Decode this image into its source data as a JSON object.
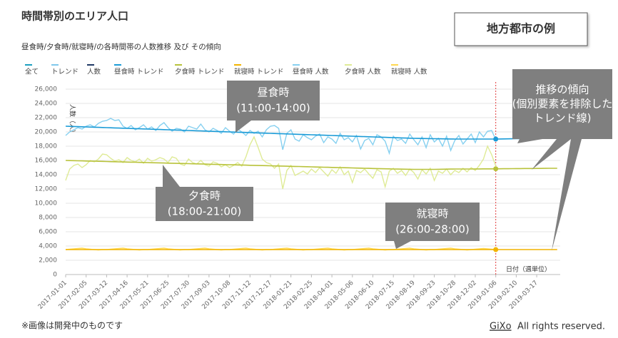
{
  "chart_data": {
    "type": "line",
    "title": "時間帯別のエリア人口",
    "subtitle": "昼食時/夕食時/就寝時/の各時間帯の人数推移 及び その傾向",
    "badge": "地方都市の例",
    "y_label": "人数（人）",
    "x_label": "日付（週単位）",
    "footnote": "※画像は開発中のものです",
    "copyright_brand": "GiXo",
    "copyright_text": "All rights reserved.",
    "filters": [
      {
        "name": "全て",
        "color": "#1a9fc0"
      },
      {
        "name": "トレンド",
        "color": "#7fc8ec"
      },
      {
        "name": "人数",
        "color": "#1f3864"
      }
    ],
    "annotations": [
      {
        "lines": [
          "昼食時",
          "(11:00-14:00)"
        ]
      },
      {
        "lines": [
          "夕食時",
          "(18:00-21:00)"
        ]
      },
      {
        "lines": [
          "就寝時",
          "(26:00-28:00)"
        ]
      },
      {
        "lines": [
          "推移の傾向",
          "(個別要素を排除した",
          "トレンド線)"
        ]
      }
    ],
    "vline": {
      "x": "2019-01-06",
      "color": "#e03a3a"
    },
    "ylim": [
      0,
      26000
    ],
    "yticks": [
      0,
      {
        "value": 2000,
        "label": "2,000"
      },
      {
        "value": 4000,
        "label": "4,000"
      },
      {
        "value": 6000,
        "label": "6,000"
      },
      {
        "value": 8000,
        "label": "8,000"
      },
      {
        "value": 10000,
        "label": "10,000"
      },
      {
        "value": 12000,
        "label": "12,000"
      },
      {
        "value": 14000,
        "label": "14,000"
      },
      {
        "value": 16000,
        "label": "16,000"
      },
      {
        "value": 18000,
        "label": "18,000"
      },
      {
        "value": 20000,
        "label": "20,000"
      },
      {
        "value": 22000,
        "label": "22,000"
      },
      {
        "value": 24000,
        "label": "24,000"
      },
      {
        "value": 26000,
        "label": "26,000"
      }
    ],
    "grid": true,
    "categories": [
      "2017-01-01",
      null,
      null,
      null,
      null,
      "2017-02-05",
      null,
      null,
      null,
      null,
      "2017-03-12",
      null,
      null,
      null,
      null,
      "2017-04-16",
      null,
      null,
      null,
      null,
      "2017-05-21",
      null,
      null,
      null,
      null,
      "2017-06-25",
      null,
      null,
      null,
      null,
      "2017-07-30",
      null,
      null,
      null,
      null,
      "2017-09-03",
      null,
      null,
      null,
      null,
      "2017-10-08",
      null,
      null,
      null,
      null,
      "2017-11-12",
      null,
      null,
      null,
      null,
      "2017-12-17",
      null,
      null,
      null,
      null,
      "2018-01-21",
      null,
      null,
      null,
      null,
      "2018-02-25",
      null,
      null,
      null,
      null,
      "2018-04-01",
      null,
      null,
      null,
      null,
      "2018-05-06",
      null,
      null,
      null,
      null,
      "2018-06-10",
      null,
      null,
      null,
      null,
      "2018-07-15",
      null,
      null,
      null,
      null,
      "2018-08-19",
      null,
      null,
      null,
      null,
      "2018-09-23",
      null,
      null,
      null,
      null,
      "2018-10-28",
      null,
      null,
      null,
      null,
      "2018-12-02",
      null,
      null,
      null,
      null,
      "2019-01-06",
      null,
      null,
      null,
      null,
      "2019-02-10",
      null,
      null,
      null,
      null,
      "2019-03-17",
      null,
      null,
      null,
      null,
      null
    ],
    "series": [
      {
        "name": "昼食時 トレンド",
        "color": "#1a9bd7",
        "width": 1.6,
        "values": [
          20800,
          20780,
          20760,
          20740,
          20720,
          20700,
          20680,
          20660,
          20640,
          20620,
          20600,
          20580,
          20560,
          20540,
          20520,
          20500,
          20480,
          20460,
          20440,
          20420,
          20400,
          20380,
          20360,
          20340,
          20320,
          20300,
          20280,
          20260,
          20240,
          20220,
          20200,
          20180,
          20160,
          20140,
          20120,
          20100,
          20080,
          20060,
          20040,
          20020,
          20000,
          19980,
          19960,
          19940,
          19920,
          19900,
          19880,
          19860,
          19840,
          19820,
          19800,
          19780,
          19760,
          19740,
          19720,
          19700,
          19680,
          19660,
          19640,
          19620,
          19600,
          19580,
          19560,
          19540,
          19520,
          19500,
          19480,
          19460,
          19440,
          19420,
          19400,
          19380,
          19360,
          19340,
          19320,
          19300,
          19280,
          19260,
          19240,
          19220,
          19200,
          19180,
          19160,
          19140,
          19120,
          19100,
          19090,
          19080,
          19070,
          19060,
          19050,
          19040,
          19030,
          19020,
          19010,
          19000,
          19000,
          19000,
          19000,
          19000,
          19000,
          19000,
          19000,
          19000,
          19000,
          19000,
          19010,
          19020,
          19030,
          19040,
          19050,
          19060,
          19070,
          19080,
          19090,
          19100,
          19110,
          19120,
          19130,
          19140,
          19150
        ]
      },
      {
        "name": "夕食時 トレンド",
        "color": "#b8c23a",
        "width": 1.6,
        "values": [
          16000,
          15985,
          15970,
          15955,
          15940,
          15925,
          15910,
          15895,
          15880,
          15865,
          15850,
          15835,
          15820,
          15805,
          15790,
          15775,
          15760,
          15745,
          15730,
          15715,
          15700,
          15685,
          15670,
          15655,
          15640,
          15625,
          15610,
          15595,
          15580,
          15565,
          15550,
          15535,
          15520,
          15505,
          15490,
          15475,
          15460,
          15445,
          15430,
          15415,
          15400,
          15385,
          15370,
          15355,
          15340,
          15325,
          15310,
          15295,
          15280,
          15265,
          15250,
          15235,
          15220,
          15205,
          15190,
          15175,
          15160,
          15145,
          15130,
          15115,
          15100,
          15085,
          15070,
          15055,
          15040,
          15025,
          15010,
          14995,
          14980,
          14965,
          14950,
          14935,
          14920,
          14905,
          14890,
          14875,
          14860,
          14845,
          14830,
          14815,
          14800,
          14790,
          14780,
          14770,
          14760,
          14750,
          14750,
          14750,
          14750,
          14750,
          14750,
          14760,
          14770,
          14780,
          14790,
          14800,
          14800,
          14800,
          14800,
          14800,
          14805,
          14810,
          14815,
          14820,
          14825,
          14830,
          14835,
          14840,
          14845,
          14850,
          14855,
          14860,
          14865,
          14870,
          14875,
          14880,
          14885,
          14890,
          14895,
          14900,
          14905
        ]
      },
      {
        "name": "就寝時 トレンド",
        "color": "#f2b400",
        "width": 1.6,
        "values": [
          3500,
          3500,
          3500,
          3500,
          3500,
          3500,
          3500,
          3500,
          3500,
          3500,
          3500,
          3500,
          3500,
          3500,
          3500,
          3500,
          3500,
          3500,
          3500,
          3500,
          3500,
          3500,
          3500,
          3500,
          3500,
          3500,
          3500,
          3500,
          3500,
          3500,
          3500,
          3500,
          3500,
          3500,
          3500,
          3500,
          3500,
          3500,
          3500,
          3500,
          3500,
          3500,
          3500,
          3500,
          3500,
          3500,
          3500,
          3500,
          3500,
          3500,
          3500,
          3500,
          3500,
          3500,
          3500,
          3500,
          3500,
          3500,
          3500,
          3500,
          3500,
          3500,
          3500,
          3500,
          3500,
          3500,
          3500,
          3500,
          3500,
          3500,
          3500,
          3500,
          3500,
          3500,
          3500,
          3500,
          3500,
          3500,
          3500,
          3500,
          3500,
          3500,
          3500,
          3500,
          3500,
          3500,
          3500,
          3500,
          3500,
          3500,
          3500,
          3500,
          3500,
          3500,
          3500,
          3500,
          3500,
          3500,
          3500,
          3500,
          3500,
          3500,
          3500,
          3500,
          3500,
          3500,
          3500,
          3500,
          3500,
          3500,
          3500,
          3500,
          3500,
          3500,
          3500,
          3500,
          3500,
          3500,
          3500,
          3500,
          3500
        ]
      },
      {
        "name": "昼食時 人数",
        "color": "#86d0f0",
        "width": 1.4,
        "values": [
          19500,
          20000,
          20300,
          20600,
          20400,
          20800,
          21000,
          20700,
          21200,
          21500,
          21600,
          21900,
          21600,
          21700,
          20800,
          20500,
          20900,
          20300,
          20600,
          21000,
          20400,
          20700,
          20200,
          20900,
          21300,
          20600,
          20100,
          20500,
          20400,
          20000,
          20800,
          20600,
          20400,
          21100,
          20300,
          20000,
          20500,
          20200,
          19800,
          20600,
          20100,
          19700,
          20400,
          20000,
          19500,
          20200,
          19800,
          20100,
          19300,
          20300,
          20800,
          20900,
          20500,
          17500,
          19800,
          20300,
          19000,
          18700,
          19600,
          19200,
          18900,
          19400,
          19700,
          18500,
          19300,
          19000,
          18400,
          19800,
          18900,
          19200,
          18600,
          19500,
          17600,
          18800,
          19100,
          18200,
          19600,
          19300,
          18700,
          17000,
          19400,
          18800,
          19000,
          18400,
          19700,
          18900,
          18200,
          19300,
          17800,
          19600,
          18600,
          19100,
          18000,
          19400,
          17400,
          18800,
          19500,
          18300,
          19000,
          19700,
          18500,
          20000,
          19300,
          20100,
          20200,
          18900,
          null,
          null,
          null,
          null,
          null,
          null,
          null,
          null,
          null,
          null,
          null,
          null,
          null,
          null,
          null
        ]
      },
      {
        "name": "夕食時 人数",
        "color": "#dfeb96",
        "width": 1.4,
        "values": [
          13200,
          14800,
          15300,
          15500,
          15000,
          15400,
          16000,
          15800,
          16200,
          16900,
          16800,
          16300,
          15900,
          16100,
          15700,
          16400,
          16000,
          15800,
          16200,
          15600,
          16300,
          15900,
          16100,
          16400,
          16200,
          15700,
          16500,
          16300,
          15500,
          15300,
          16200,
          15700,
          15500,
          16000,
          15400,
          15200,
          15800,
          15600,
          15100,
          15400,
          15000,
          15300,
          15700,
          15200,
          16500,
          18200,
          19300,
          17800,
          16200,
          15700,
          15500,
          14900,
          15500,
          12000,
          14600,
          15300,
          13900,
          14200,
          14500,
          14100,
          14800,
          14300,
          15000,
          14400,
          13800,
          14700,
          14200,
          15100,
          14000,
          14500,
          12900,
          14600,
          14300,
          14800,
          14100,
          13500,
          14700,
          14400,
          12300,
          14500,
          14900,
          14200,
          14600,
          13900,
          14800,
          14300,
          13400,
          14700,
          14100,
          14900,
          13200,
          14500,
          14200,
          14800,
          14000,
          14600,
          14300,
          14900,
          14400,
          15000,
          14600,
          15300,
          16200,
          18000,
          16800,
          15200,
          null,
          null,
          null,
          null,
          null,
          null,
          null,
          null,
          null,
          null,
          null,
          null,
          null,
          null,
          null
        ]
      },
      {
        "name": "就寝時 人数",
        "color": "#ffd84f",
        "width": 1.4,
        "values": [
          3500,
          3550,
          3600,
          3650,
          3700,
          3600,
          3550,
          3500,
          3450,
          3500,
          3500,
          3550,
          3600,
          3650,
          3700,
          3600,
          3550,
          3500,
          3450,
          3500,
          3500,
          3550,
          3600,
          3650,
          3700,
          3600,
          3550,
          3500,
          3450,
          3500,
          3500,
          3550,
          3600,
          3650,
          3700,
          3600,
          3550,
          3500,
          3450,
          3500,
          3500,
          3550,
          3600,
          3650,
          3700,
          3600,
          3550,
          3500,
          3450,
          3500,
          3500,
          3550,
          3600,
          3650,
          3700,
          3600,
          3550,
          3500,
          3450,
          3500,
          3500,
          3550,
          3600,
          3650,
          3700,
          3600,
          3550,
          3500,
          3450,
          3500,
          3500,
          3550,
          3600,
          3650,
          3700,
          3600,
          3550,
          3500,
          3450,
          3500,
          3500,
          3550,
          3600,
          3650,
          3700,
          3600,
          3550,
          3500,
          3450,
          3500,
          3500,
          3550,
          3600,
          3650,
          3700,
          3600,
          3550,
          3500,
          3450,
          3500,
          3550,
          3600,
          3650,
          3600,
          3550,
          3500,
          null,
          null,
          null,
          null,
          null,
          null,
          null,
          null,
          null,
          null,
          null,
          null,
          null,
          null,
          null
        ]
      }
    ]
  }
}
